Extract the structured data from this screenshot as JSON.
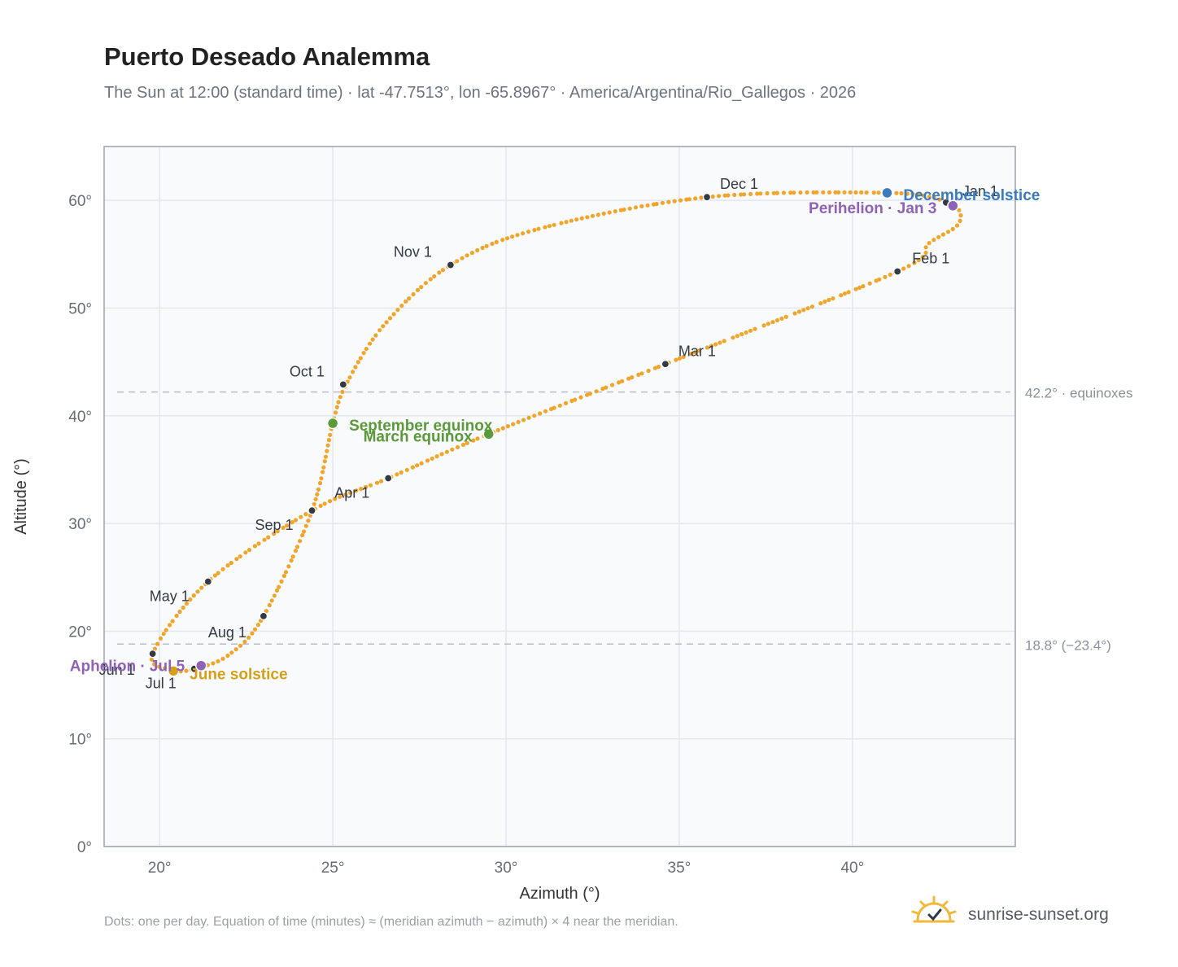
{
  "header": {
    "title": "Puerto Deseado Analemma",
    "subtitle": "The Sun at 12:00 (standard time) · lat -47.7513°, lon -65.8967° · America/Argentina/Rio_Gallegos · 2026"
  },
  "footer": {
    "note": "Dots: one per day. Equation of time (minutes) ≈ (meridian azimuth − azimuth) × 4 near the meridian.",
    "brand": "sunrise-sunset.org",
    "brand_icon": "sun-logo-icon"
  },
  "colors": {
    "curve": "#f2a52b",
    "month_dot": "#333a45",
    "equinox": "#5a9a3a",
    "june_solstice": "#d4a017",
    "december_solstice": "#3a7bbf",
    "apsis": "#8e63b5",
    "plot_bg": "#f8fafc",
    "grid": "#e3e8ee",
    "frame": "#9aa3b0"
  },
  "chart_data": {
    "type": "scatter",
    "xlabel": "Azimuth (°)",
    "ylabel": "Altitude (°)",
    "xlim": [
      18.4,
      44.7
    ],
    "ylim": [
      0,
      65
    ],
    "xticks": [
      20,
      25,
      30,
      35,
      40
    ],
    "xtick_labels": [
      "20°",
      "25°",
      "30°",
      "35°",
      "40°"
    ],
    "yticks": [
      0,
      10,
      20,
      30,
      40,
      50,
      60
    ],
    "ytick_labels": [
      "0°",
      "10°",
      "20°",
      "30°",
      "40°",
      "50°",
      "60°"
    ],
    "grid": true,
    "reference_lines": [
      {
        "y": 42.2,
        "label": "42.2° · equinoxes"
      },
      {
        "y": 18.8,
        "label": "18.8° (−23.4°)"
      }
    ],
    "analemma_path": [
      [
        42.7,
        59.9
      ],
      [
        43.1,
        58.9
      ],
      [
        43.0,
        57.6
      ],
      [
        42.2,
        56.0
      ],
      [
        41.3,
        53.4
      ],
      [
        34.6,
        44.8
      ],
      [
        29.5,
        38.3
      ],
      [
        26.6,
        34.2
      ],
      [
        24.4,
        31.2
      ],
      [
        21.4,
        24.6
      ],
      [
        19.8,
        17.9
      ],
      [
        20.4,
        16.4
      ],
      [
        21.0,
        16.5
      ],
      [
        22.0,
        17.8
      ],
      [
        23.0,
        21.4
      ],
      [
        24.4,
        31.2
      ],
      [
        25.0,
        39.3
      ],
      [
        25.4,
        43.0
      ],
      [
        26.5,
        48.5
      ],
      [
        28.4,
        54.0
      ],
      [
        31.0,
        57.4
      ],
      [
        35.8,
        60.3
      ],
      [
        41.0,
        60.7
      ],
      [
        42.7,
        59.9
      ]
    ],
    "months": [
      {
        "label": "Jan 1",
        "x": 42.7,
        "y": 59.8
      },
      {
        "label": "Feb 1",
        "x": 41.3,
        "y": 53.4
      },
      {
        "label": "Mar 1",
        "x": 34.6,
        "y": 44.8
      },
      {
        "label": "Apr 1",
        "x": 26.6,
        "y": 34.2
      },
      {
        "label": "May 1",
        "x": 21.4,
        "y": 24.6
      },
      {
        "label": "Jun 1",
        "x": 19.8,
        "y": 17.9
      },
      {
        "label": "Jul 1",
        "x": 21.0,
        "y": 16.5
      },
      {
        "label": "Aug 1",
        "x": 23.0,
        "y": 21.4
      },
      {
        "label": "Sep 1",
        "x": 24.4,
        "y": 31.2
      },
      {
        "label": "Oct 1",
        "x": 25.3,
        "y": 42.9
      },
      {
        "label": "Nov 1",
        "x": 28.4,
        "y": 54.0
      },
      {
        "label": "Dec 1",
        "x": 35.8,
        "y": 60.3
      }
    ],
    "events": [
      {
        "label": "December solstice",
        "x": 41.0,
        "y": 60.7,
        "kind": "december_solstice"
      },
      {
        "label": "Perihelion · Jan 3",
        "x": 42.9,
        "y": 59.5,
        "kind": "apsis"
      },
      {
        "label": "March equinox",
        "x": 29.5,
        "y": 38.3,
        "kind": "equinox"
      },
      {
        "label": "September equinox",
        "x": 25.0,
        "y": 39.3,
        "kind": "equinox"
      },
      {
        "label": "June solstice",
        "x": 20.4,
        "y": 16.3,
        "kind": "june_solstice"
      },
      {
        "label": "Aphelion · Jul 5",
        "x": 21.2,
        "y": 16.8,
        "kind": "apsis"
      }
    ]
  }
}
